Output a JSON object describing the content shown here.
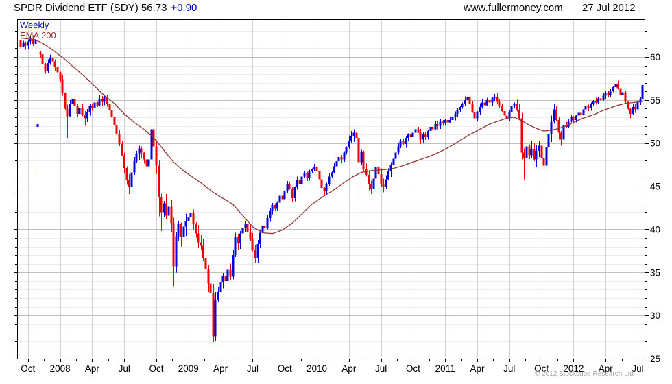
{
  "header": {
    "title": "SPDR Dividend ETF (SDY) 56.73",
    "change": "+0.90",
    "website": "www.fullermoney.com",
    "date": "27 Jul 2012"
  },
  "legend": {
    "timeframe": "Weekly",
    "overlay": "EMA 200"
  },
  "footer": {
    "copyright": "© 2012 Stockcube Research Ltd"
  },
  "colors": {
    "up": "#0000e0",
    "down": "#ee0000",
    "ema": "#8e3434",
    "accent_blue": "#0000cc",
    "axis": "#000000",
    "grid_minor": "#ededed",
    "grid_major": "#bfbfbf",
    "grid_vertical": "#d2d2d2",
    "copyright": "#a6a6a6"
  },
  "chart_data": {
    "type": "candlestick",
    "title": "SPDR Dividend ETF (SDY)",
    "timeframe": "Weekly",
    "overlay": "EMA 200",
    "last_close": 56.73,
    "change": 0.9,
    "y_ticks": [
      25,
      30,
      35,
      40,
      45,
      50,
      55,
      60
    ],
    "y_range": [
      25,
      64.4
    ],
    "grid": true,
    "x_tick_labels": [
      "Oct",
      "2008",
      "Apr",
      "Jul",
      "Oct",
      "2009",
      "Apr",
      "Jul",
      "Oct",
      "2010",
      "Apr",
      "Jul",
      "Oct",
      "2011",
      "Apr",
      "Jul",
      "Oct",
      "2012",
      "Apr",
      "Jul"
    ],
    "x_tick_weeks": [
      3,
      16,
      29,
      42,
      55,
      68,
      81,
      94,
      107,
      120,
      133,
      146,
      159,
      172,
      185,
      198,
      211,
      224,
      237,
      250
    ],
    "weeks_total": 253,
    "first_open": 62.0,
    "closes": [
      61.2,
      61.6,
      61.3,
      61.8,
      62.1,
      61.5,
      61.9,
      52.2,
      60.3,
      59.2,
      58.4,
      59.3,
      59.9,
      59.5,
      58.9,
      58.2,
      57.4,
      55.8,
      54.0,
      53.1,
      54.6,
      55.1,
      54.3,
      53.4,
      54.1,
      53.3,
      52.9,
      53.6,
      54.3,
      54.1,
      54.7,
      54.4,
      55.1,
      54.8,
      55.3,
      54.6,
      53.8,
      53.0,
      52.1,
      51.1,
      49.9,
      48.6,
      47.1,
      45.7,
      44.9,
      46.6,
      47.9,
      48.7,
      49.4,
      48.9,
      48.1,
      47.3,
      48.1,
      51.6,
      49.6,
      47.4,
      43.7,
      42.0,
      43.0,
      41.6,
      42.6,
      40.7,
      35.7,
      39.2,
      40.6,
      39.1,
      40.3,
      41.0,
      41.4,
      41.9,
      40.6,
      39.5,
      38.5,
      38.1,
      36.7,
      35.4,
      33.7,
      32.6,
      27.6,
      31.8,
      32.7,
      33.9,
      34.6,
      34.0,
      35.3,
      34.5,
      37.0,
      39.1,
      38.4,
      39.5,
      40.1,
      40.6,
      39.7,
      38.9,
      37.6,
      36.7,
      38.3,
      39.6,
      40.4,
      40.1,
      41.3,
      42.1,
      42.8,
      42.4,
      43.1,
      43.9,
      43.5,
      44.4,
      45.3,
      44.7,
      43.6,
      44.9,
      45.7,
      45.3,
      46.1,
      46.5,
      46.0,
      46.8,
      47.0,
      47.2,
      46.8,
      45.8,
      44.8,
      44.4,
      45.3,
      46.1,
      46.6,
      47.3,
      47.9,
      48.4,
      48.1,
      48.9,
      49.5,
      50.2,
      50.8,
      51.2,
      50.6,
      47.8,
      49.0,
      47.0,
      46.3,
      45.2,
      44.7,
      45.9,
      47.2,
      46.4,
      45.3,
      44.9,
      45.8,
      46.7,
      47.5,
      48.2,
      48.9,
      49.6,
      50.2,
      49.9,
      50.6,
      51.0,
      50.7,
      51.2,
      51.6,
      51.3,
      50.4,
      51.0,
      50.7,
      51.4,
      51.9,
      51.6,
      52.2,
      52.0,
      52.5,
      52.3,
      52.7,
      52.4,
      52.7,
      53.0,
      53.4,
      53.8,
      54.2,
      54.6,
      55.0,
      55.4,
      54.6,
      53.6,
      52.9,
      53.6,
      54.2,
      54.7,
      54.4,
      55.0,
      54.7,
      55.2,
      55.4,
      54.8,
      54.3,
      53.7,
      53.2,
      52.9,
      53.6,
      54.3,
      54.6,
      53.8,
      52.9,
      48.9,
      48.3,
      49.6,
      48.6,
      49.3,
      48.1,
      49.1,
      49.7,
      48.3,
      47.4,
      49.5,
      51.0,
      52.5,
      53.9,
      52.7,
      51.2,
      50.4,
      52.1,
      51.9,
      52.5,
      53.0,
      52.7,
      53.2,
      53.5,
      53.3,
      53.9,
      54.3,
      54.1,
      54.6,
      54.9,
      54.7,
      55.2,
      55.0,
      55.5,
      55.8,
      55.6,
      56.1,
      56.5,
      56.9,
      56.3,
      55.6,
      55.9,
      54.8,
      54.0,
      53.4,
      54.2,
      53.9,
      54.7,
      55.1,
      56.73
    ],
    "open_overrides": {
      "7": 51.9,
      "8": 60.5
    },
    "wick_overrides": {
      "0": {
        "l": 57.0
      },
      "4": {
        "h": 62.4
      },
      "7": {
        "l": 46.4
      },
      "19": {
        "l": 50.6
      },
      "26": {
        "l": 52.0
      },
      "44": {
        "l": 44.1
      },
      "53": {
        "h": 56.4,
        "l": 48.0
      },
      "56": {
        "l": 41.5
      },
      "57": {
        "l": 39.8
      },
      "62": {
        "l": 33.4
      },
      "65": {
        "l": 38.0
      },
      "77": {
        "l": 31.9
      },
      "78": {
        "l": 26.9
      },
      "95": {
        "l": 36.1
      },
      "110": {
        "l": 43.2
      },
      "122": {
        "l": 44.0
      },
      "135": {
        "h": 51.6
      },
      "137": {
        "l": 41.6
      },
      "142": {
        "l": 44.1
      },
      "147": {
        "l": 44.3
      },
      "162": {
        "l": 49.9
      },
      "181": {
        "h": 55.8
      },
      "184": {
        "l": 52.3
      },
      "192": {
        "h": 55.7
      },
      "196": {
        "l": 52.6
      },
      "204": {
        "l": 45.8
      },
      "212": {
        "l": 46.2
      },
      "216": {
        "h": 54.6
      },
      "219": {
        "l": 49.7
      },
      "241": {
        "h": 57.2
      },
      "247": {
        "l": 52.9
      },
      "252": {
        "h": 57.1
      }
    },
    "volatility_segments": [
      [
        0,
        37,
        0.5
      ],
      [
        38,
        52,
        0.7
      ],
      [
        53,
        79,
        1.1
      ],
      [
        80,
        99,
        0.8
      ],
      [
        100,
        132,
        0.45
      ],
      [
        133,
        150,
        0.7
      ],
      [
        151,
        201,
        0.45
      ],
      [
        202,
        219,
        0.9
      ],
      [
        220,
        252,
        0.4
      ]
    ],
    "ema_anchors": [
      [
        0,
        62.2
      ],
      [
        6,
        62.0
      ],
      [
        10,
        61.4
      ],
      [
        14,
        60.6
      ],
      [
        18,
        59.7
      ],
      [
        22,
        58.7
      ],
      [
        26,
        57.7
      ],
      [
        30,
        56.6
      ],
      [
        34,
        55.5
      ],
      [
        38,
        54.6
      ],
      [
        42,
        53.4
      ],
      [
        46,
        52.4
      ],
      [
        50,
        51.6
      ],
      [
        54,
        50.6
      ],
      [
        58,
        49.2
      ],
      [
        62,
        47.8
      ],
      [
        66,
        46.8
      ],
      [
        70,
        46.0
      ],
      [
        74,
        45.2
      ],
      [
        78,
        44.3
      ],
      [
        82,
        43.6
      ],
      [
        86,
        42.9
      ],
      [
        90,
        41.6
      ],
      [
        94,
        40.3
      ],
      [
        98,
        39.6
      ],
      [
        102,
        39.5
      ],
      [
        106,
        39.9
      ],
      [
        110,
        40.7
      ],
      [
        114,
        41.8
      ],
      [
        118,
        42.9
      ],
      [
        122,
        43.7
      ],
      [
        126,
        44.4
      ],
      [
        130,
        45.2
      ],
      [
        134,
        46.0
      ],
      [
        138,
        46.6
      ],
      [
        142,
        46.8
      ],
      [
        146,
        46.9
      ],
      [
        150,
        47.0
      ],
      [
        154,
        47.3
      ],
      [
        158,
        47.7
      ],
      [
        162,
        48.1
      ],
      [
        166,
        48.5
      ],
      [
        170,
        49.0
      ],
      [
        174,
        49.6
      ],
      [
        178,
        50.3
      ],
      [
        182,
        51.0
      ],
      [
        186,
        51.6
      ],
      [
        190,
        52.2
      ],
      [
        194,
        52.6
      ],
      [
        197,
        52.9
      ],
      [
        200,
        53.0
      ],
      [
        203,
        52.6
      ],
      [
        206,
        52.1
      ],
      [
        209,
        51.7
      ],
      [
        212,
        51.4
      ],
      [
        215,
        51.5
      ],
      [
        218,
        51.7
      ],
      [
        221,
        52.0
      ],
      [
        224,
        52.4
      ],
      [
        227,
        52.8
      ],
      [
        230,
        53.1
      ],
      [
        233,
        53.4
      ],
      [
        236,
        53.8
      ],
      [
        239,
        54.1
      ],
      [
        242,
        54.4
      ],
      [
        245,
        54.6
      ],
      [
        248,
        54.7
      ],
      [
        252,
        54.85
      ]
    ]
  }
}
